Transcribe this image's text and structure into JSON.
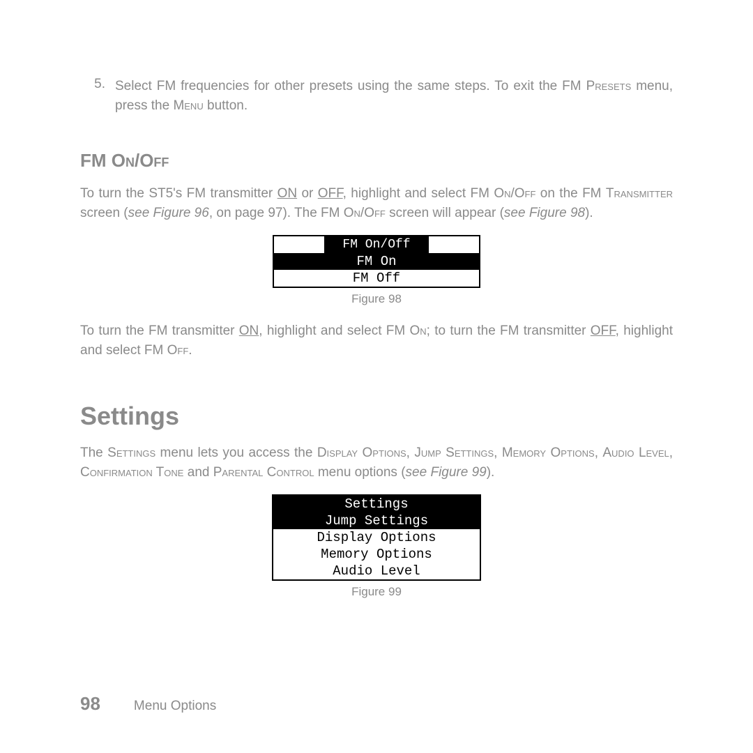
{
  "step": {
    "number": "5.",
    "text_a": "Select FM frequencies for other presets using the same steps. To exit the FM ",
    "presets": "Presets",
    "text_b": " menu, press the ",
    "menu": "Menu",
    "text_c": " button."
  },
  "fm_heading": "FM On/Off",
  "p1": {
    "a": "To turn the ST5's FM transmitter ",
    "on": "ON",
    "b": " or ",
    "off": "OFF",
    "c": ", highlight and select FM ",
    "onoff_sc": "On/Off",
    "d": " on the FM ",
    "transmitter_sc": "Transmitter",
    "e": " screen (",
    "see1": "see Figure 96",
    "f": ", on page 97). The FM ",
    "onoff_sc2": "On/Off",
    "g": " screen will appear (",
    "see2": "see Figure 98",
    "h": ")."
  },
  "fig98": {
    "title": "FM On/Off",
    "opt1": "FM On",
    "opt2": "FM Off",
    "caption": "Figure 98"
  },
  "p2": {
    "a": "To turn the FM transmitter ",
    "on": "ON",
    "b": ", highlight and select FM ",
    "on_sc": "On",
    "c": "; to turn the FM transmitter ",
    "off": "OFF",
    "d": ", highlight and select FM ",
    "off_sc": "Off",
    "e": "."
  },
  "settings_heading": "Settings",
  "p3": {
    "a": "The ",
    "settings_sc": "Settings",
    "b": " menu lets you access the ",
    "disp_sc": "Display Options",
    "c": ", ",
    "jump_sc": "Jump Settings",
    "d": ", ",
    "mem_sc": "Memory Options",
    "e": ", ",
    "audio_sc": "Audio Level",
    "f": ", ",
    "conf_sc": "Confirmation Tone",
    "g": " and ",
    "par_sc": "Parental Control",
    "h": " menu options (",
    "see": "see Figure 99",
    "i": ")."
  },
  "fig99": {
    "title": "Settings",
    "opt1": "Jump Settings",
    "opt2": "Display Options",
    "opt3": "Memory Options",
    "opt4": "Audio Level",
    "caption": "Figure 99"
  },
  "footer": {
    "page": "98",
    "section": "Menu Options"
  }
}
